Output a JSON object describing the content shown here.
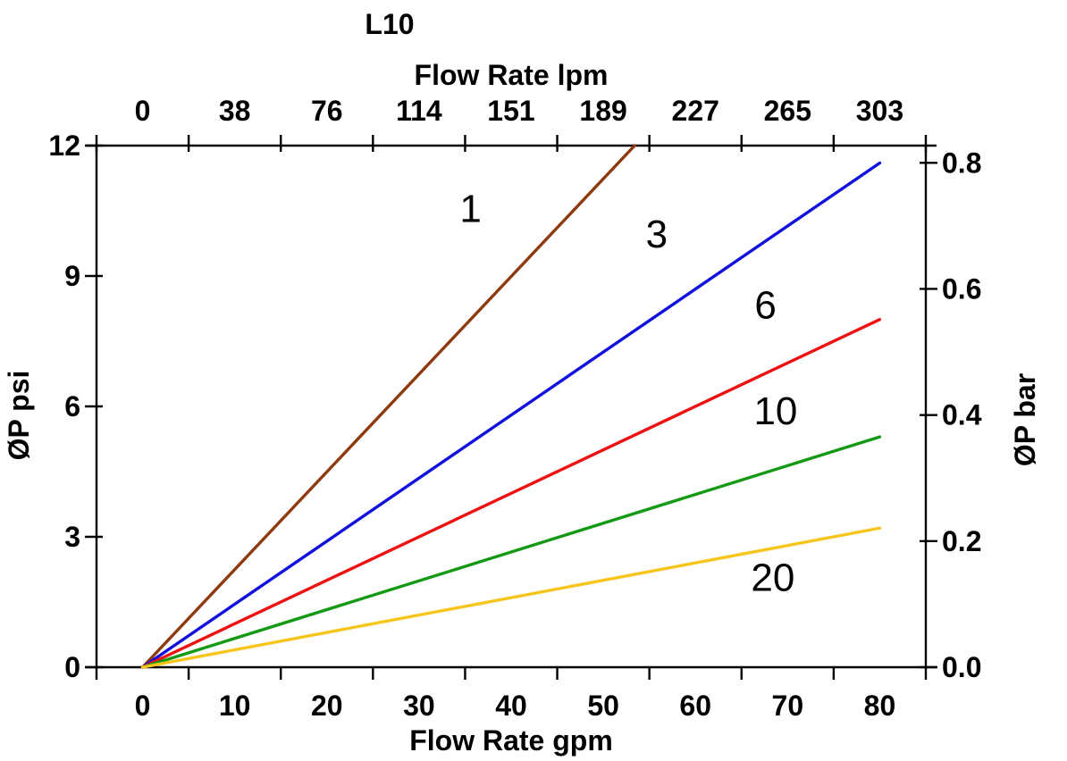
{
  "chart_data": {
    "type": "line",
    "title": "L10",
    "x_axis_bottom": {
      "label": "Flow Rate gpm",
      "unit": "gpm",
      "tick_values": [
        0,
        10,
        20,
        30,
        40,
        50,
        60,
        70,
        80
      ]
    },
    "x_axis_top": {
      "label": "Flow Rate lpm",
      "unit": "lpm",
      "tick_labels": [
        "0",
        "38",
        "76",
        "114",
        "151",
        "189",
        "227",
        "265",
        "303"
      ]
    },
    "y_axis_left": {
      "label": "ØP psi",
      "unit": "psi",
      "tick_values": [
        0,
        3,
        6,
        9,
        12
      ]
    },
    "y_axis_right": {
      "label": "ØP bar",
      "unit": "bar",
      "tick_labels": [
        "0.0",
        "0.2",
        "0.4",
        "0.6",
        "0.8"
      ],
      "psi_per_bar": 14.504
    },
    "x_range_gpm": [
      -5,
      85
    ],
    "y_range_psi": [
      0,
      12
    ],
    "tick_mark_positions_gpm": [
      -5,
      5,
      15,
      25,
      35,
      45,
      55,
      65,
      75,
      85
    ],
    "grid": false,
    "axis_color": "#000000",
    "series": [
      {
        "name": "1",
        "color": "#8e3a0e",
        "points_gpm_psi": [
          [
            0,
            0
          ],
          [
            53.4,
            12.0
          ]
        ],
        "label_pos_gpm_psi": [
          35.6,
          10.55
        ]
      },
      {
        "name": "3",
        "color": "#1111dd",
        "points_gpm_psi": [
          [
            0,
            0
          ],
          [
            80,
            11.6
          ]
        ],
        "label_pos_gpm_psi": [
          55.8,
          9.97
        ]
      },
      {
        "name": "6",
        "color": "#ee1111",
        "points_gpm_psi": [
          [
            0,
            0
          ],
          [
            80,
            8.0
          ]
        ],
        "label_pos_gpm_psi": [
          67.6,
          8.33
        ]
      },
      {
        "name": "10",
        "color": "#139913",
        "points_gpm_psi": [
          [
            0,
            0
          ],
          [
            80,
            5.3
          ]
        ],
        "label_pos_gpm_psi": [
          68.7,
          5.9
        ]
      },
      {
        "name": "20",
        "color": "#f6c51c",
        "points_gpm_psi": [
          [
            0,
            0
          ],
          [
            80,
            3.2
          ]
        ],
        "label_pos_gpm_psi": [
          68.4,
          2.07
        ]
      }
    ]
  }
}
